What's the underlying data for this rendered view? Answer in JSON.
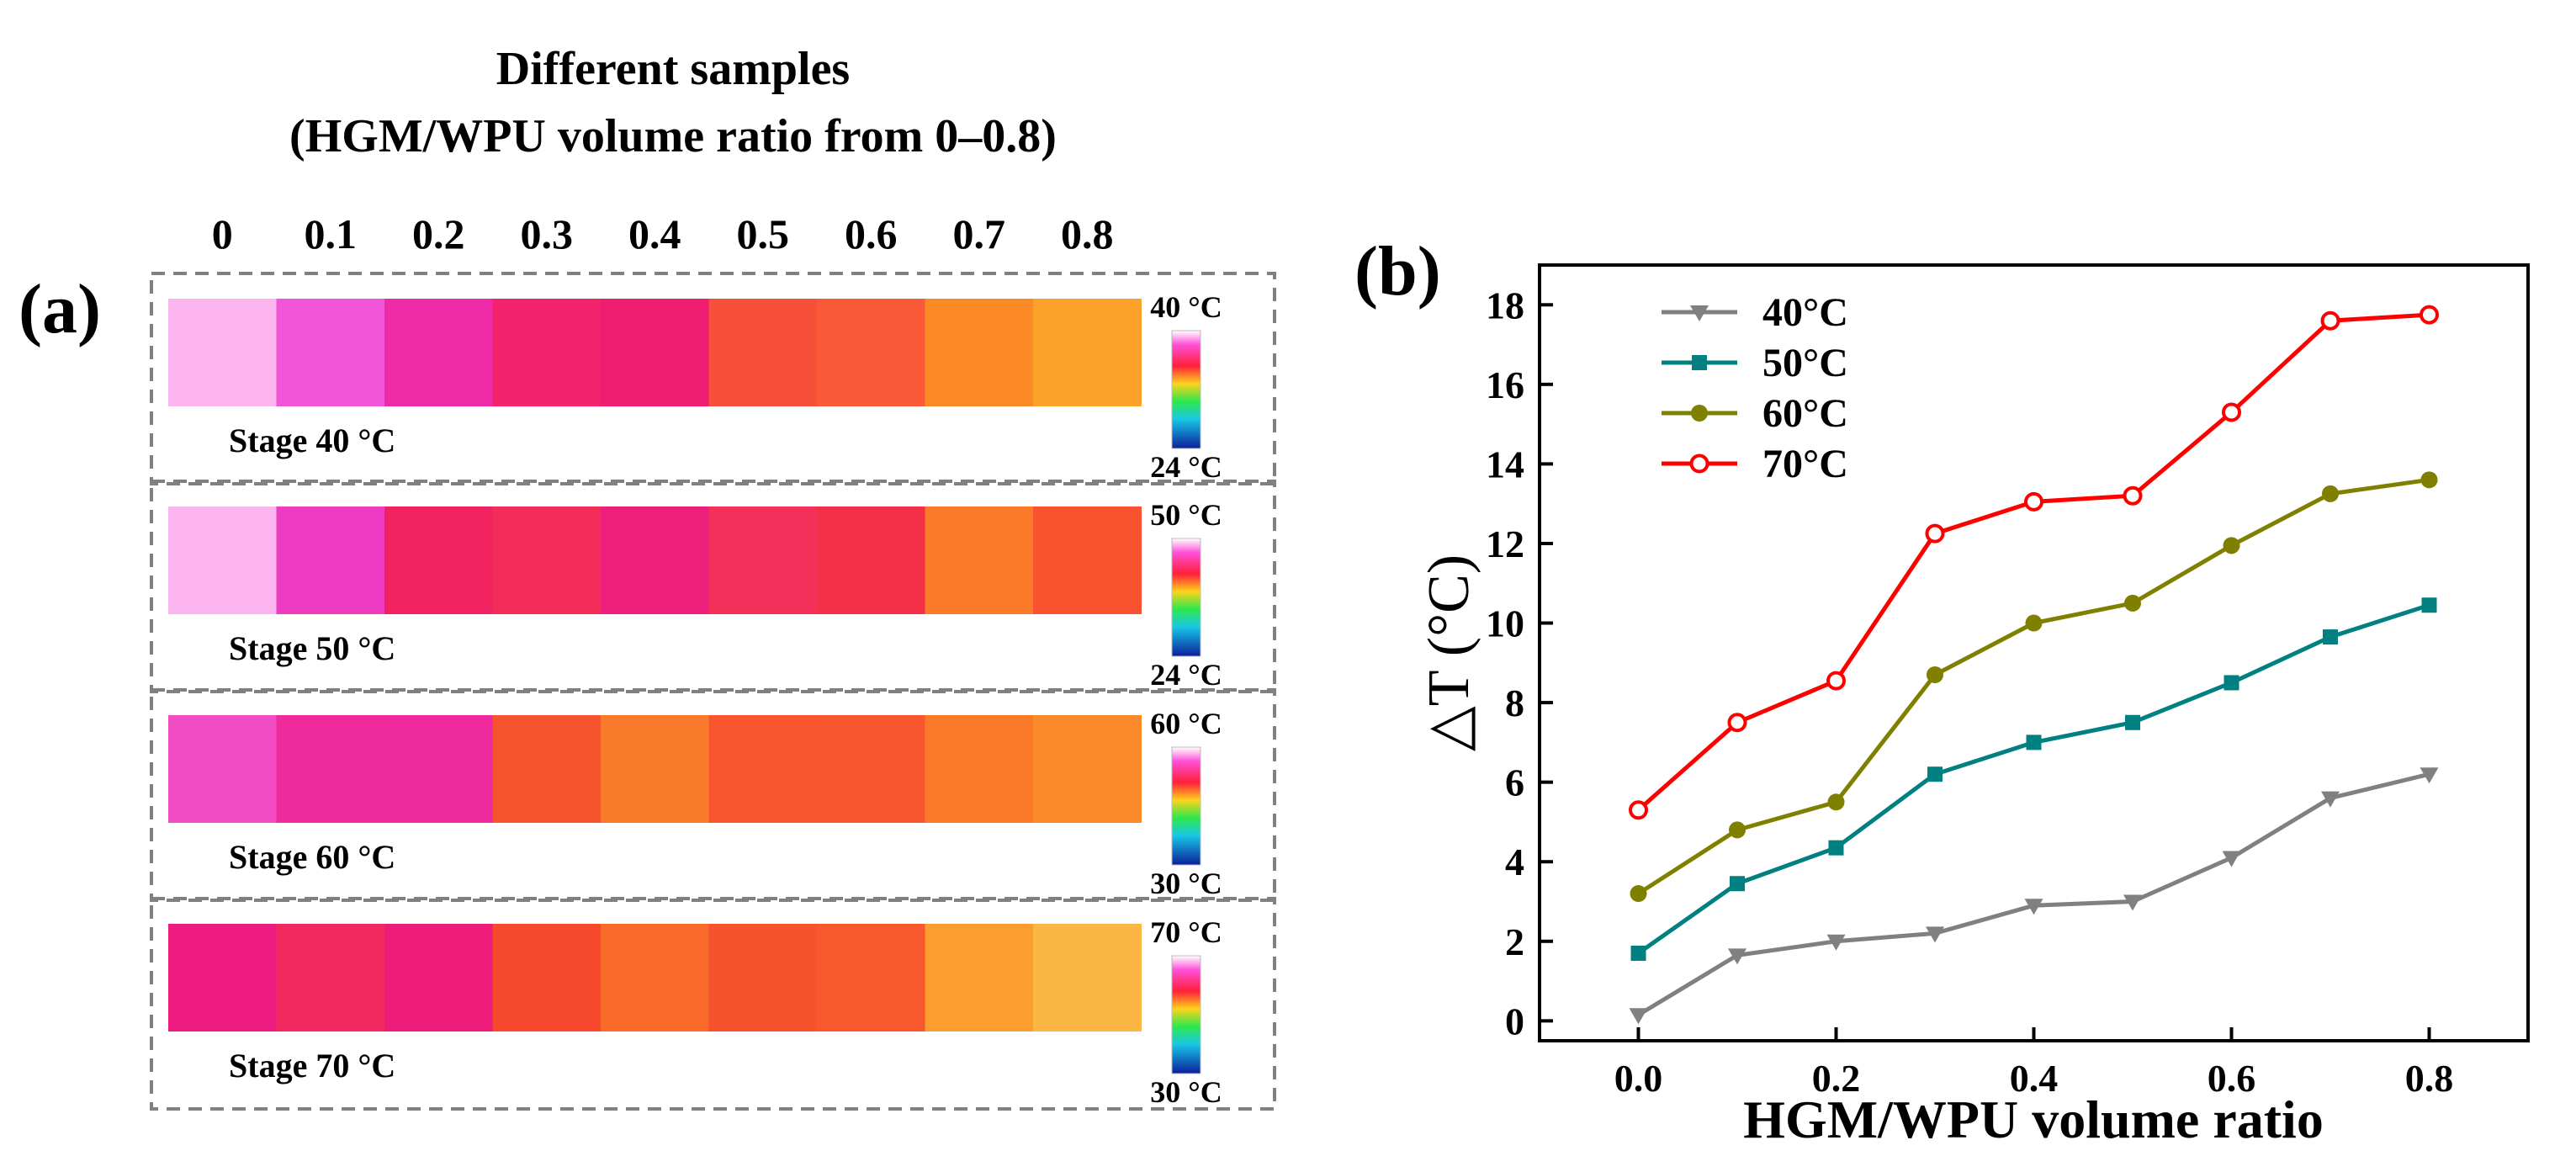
{
  "panel_a": {
    "label": "(a)",
    "title_line1": "Different samples",
    "title_line2": "(HGM/WPU volume ratio from 0–0.8)",
    "sample_ratios": [
      "0",
      "0.1",
      "0.2",
      "0.3",
      "0.4",
      "0.5",
      "0.6",
      "0.7",
      "0.8"
    ],
    "stages": [
      {
        "label": "Stage 40 °C",
        "scale_max": "40 °C",
        "scale_min": "24 °C",
        "tile_colors": [
          "#fbb4ee",
          "#f155d8",
          "#ee2aa6",
          "#f3236e",
          "#ee1d70",
          "#f85038",
          "#fa5a38",
          "#fb8a26",
          "#fca22a"
        ]
      },
      {
        "label": "Stage 50 °C",
        "scale_max": "50 °C",
        "scale_min": "24 °C",
        "tile_colors": [
          "#fbb4ee",
          "#ee3cc2",
          "#f02360",
          "#f22d5a",
          "#ec207a",
          "#f2305a",
          "#f43048",
          "#fb7a2a",
          "#f8522e"
        ]
      },
      {
        "label": "Stage 60 °C",
        "scale_max": "60 °C",
        "scale_min": "30 °C",
        "tile_colors": [
          "#f24cc4",
          "#ef2a9c",
          "#ee2a9e",
          "#f6542e",
          "#fa7a2c",
          "#f8542e",
          "#f7562e",
          "#fb7a2a",
          "#fb8a2a"
        ]
      },
      {
        "label": "Stage 70 °C",
        "scale_max": "70 °C",
        "scale_min": "30 °C",
        "tile_colors": [
          "#ee1c80",
          "#f02a5e",
          "#ed1b7a",
          "#f6482c",
          "#fa6a2a",
          "#f6522e",
          "#f7582c",
          "#fb9e2e",
          "#fcb644"
        ]
      }
    ]
  },
  "chart_data": {
    "type": "line",
    "panel_label": "(b)",
    "title": "",
    "xlabel": "HGM/WPU volume ratio",
    "ylabel": "△T (°C)",
    "x": [
      0.0,
      0.1,
      0.2,
      0.3,
      0.4,
      0.5,
      0.6,
      0.7,
      0.8
    ],
    "xlim": [
      -0.1,
      0.9
    ],
    "ylim": [
      -0.5,
      19
    ],
    "x_ticks": [
      0.0,
      0.2,
      0.4,
      0.6,
      0.8
    ],
    "x_tick_labels": [
      "0.0",
      "0.2",
      "0.4",
      "0.6",
      "0.8"
    ],
    "y_ticks": [
      0,
      2,
      4,
      6,
      8,
      10,
      12,
      14,
      16,
      18
    ],
    "y_tick_labels": [
      "0",
      "2",
      "4",
      "6",
      "8",
      "10",
      "12",
      "14",
      "16",
      "18"
    ],
    "legend_position": "top-left",
    "series": [
      {
        "name": "40°C",
        "color": "#808080",
        "marker": "triangle-down",
        "values": [
          0.15,
          1.65,
          2.0,
          2.2,
          2.9,
          3.0,
          4.1,
          5.6,
          6.2
        ]
      },
      {
        "name": "50°C",
        "color": "#008080",
        "marker": "square",
        "values": [
          1.7,
          3.45,
          4.35,
          6.2,
          7.0,
          7.5,
          8.5,
          9.65,
          10.45
        ]
      },
      {
        "name": "60°C",
        "color": "#808000",
        "marker": "circle",
        "values": [
          3.2,
          4.8,
          5.5,
          8.7,
          10.0,
          10.5,
          11.95,
          13.25,
          13.6
        ]
      },
      {
        "name": "70°C",
        "color": "#ff0000",
        "marker": "open-circle",
        "values": [
          5.3,
          7.5,
          8.55,
          12.25,
          13.05,
          13.2,
          15.3,
          17.6,
          17.75
        ]
      }
    ]
  }
}
